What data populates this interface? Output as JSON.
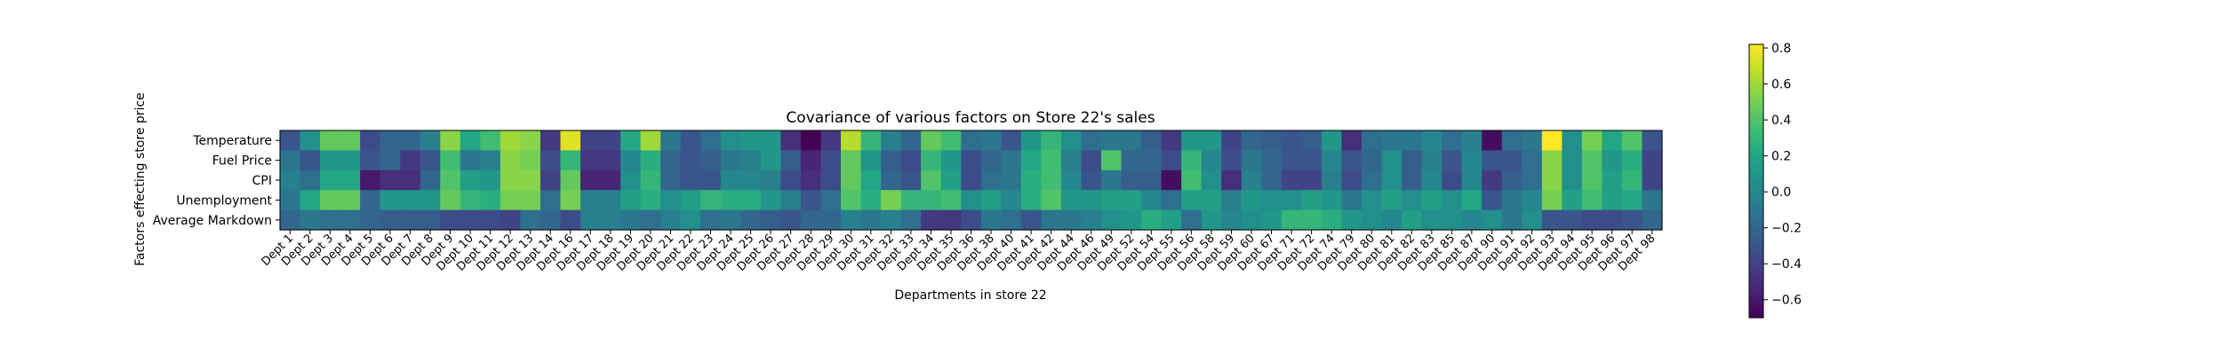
{
  "chart_data": {
    "type": "heatmap",
    "title": "Covariance of various factors on Store 22's sales",
    "xlabel": "Departments in store 22",
    "ylabel": "Factors effecting store price",
    "colormap": "viridis",
    "vmin": -0.7,
    "vmax": 0.82,
    "rows": [
      "Temperature",
      "Fuel Price",
      "CPI",
      "Unemployment",
      "Average Markdown"
    ],
    "columns": [
      "Dept 1",
      "Dept 2",
      "Dept 3",
      "Dept 4",
      "Dept 5",
      "Dept 6",
      "Dept 7",
      "Dept 8",
      "Dept 9",
      "Dept 10",
      "Dept 11",
      "Dept 12",
      "Dept 13",
      "Dept 14",
      "Dept 16",
      "Dept 17",
      "Dept 18",
      "Dept 19",
      "Dept 20",
      "Dept 21",
      "Dept 22",
      "Dept 23",
      "Dept 24",
      "Dept 25",
      "Dept 26",
      "Dept 27",
      "Dept 28",
      "Dept 29",
      "Dept 30",
      "Dept 31",
      "Dept 32",
      "Dept 33",
      "Dept 34",
      "Dept 35",
      "Dept 36",
      "Dept 38",
      "Dept 40",
      "Dept 41",
      "Dept 42",
      "Dept 44",
      "Dept 46",
      "Dept 49",
      "Dept 52",
      "Dept 54",
      "Dept 55",
      "Dept 56",
      "Dept 58",
      "Dept 59",
      "Dept 60",
      "Dept 67",
      "Dept 71",
      "Dept 72",
      "Dept 74",
      "Dept 79",
      "Dept 80",
      "Dept 81",
      "Dept 82",
      "Dept 83",
      "Dept 85",
      "Dept 87",
      "Dept 90",
      "Dept 91",
      "Dept 92",
      "Dept 93",
      "Dept 94",
      "Dept 95",
      "Dept 96",
      "Dept 97",
      "Dept 98"
    ],
    "values": [
      [
        -0.3,
        0.05,
        0.45,
        0.45,
        -0.35,
        -0.2,
        -0.2,
        -0.05,
        0.55,
        0.2,
        0.35,
        0.6,
        0.55,
        -0.45,
        0.75,
        -0.4,
        -0.4,
        0.2,
        0.6,
        -0.1,
        -0.3,
        -0.15,
        0.05,
        0.1,
        0.1,
        -0.5,
        -0.7,
        -0.45,
        0.65,
        0.3,
        -0.05,
        -0.2,
        0.45,
        0.35,
        -0.15,
        -0.1,
        -0.3,
        0.1,
        0.3,
        0.05,
        -0.15,
        -0.1,
        -0.1,
        -0.25,
        -0.45,
        0.1,
        0.1,
        -0.4,
        -0.2,
        -0.25,
        -0.3,
        -0.25,
        0.1,
        -0.5,
        -0.15,
        -0.1,
        -0.1,
        0.0,
        -0.15,
        -0.05,
        -0.65,
        -0.15,
        -0.1,
        0.82,
        0.05,
        0.5,
        0.2,
        0.4,
        -0.3
      ],
      [
        -0.1,
        -0.3,
        0.1,
        0.1,
        -0.3,
        -0.2,
        -0.45,
        -0.3,
        0.35,
        -0.1,
        -0.05,
        0.55,
        0.5,
        -0.35,
        0.3,
        -0.45,
        -0.45,
        0.0,
        0.25,
        -0.2,
        -0.3,
        -0.25,
        -0.1,
        -0.05,
        0.1,
        -0.25,
        -0.55,
        -0.35,
        0.45,
        0.1,
        -0.25,
        -0.35,
        0.3,
        0.1,
        -0.35,
        -0.2,
        -0.1,
        0.2,
        0.35,
        -0.05,
        -0.35,
        0.4,
        -0.2,
        -0.2,
        -0.35,
        0.3,
        0.0,
        -0.35,
        -0.1,
        -0.2,
        -0.3,
        -0.3,
        0.0,
        -0.3,
        -0.2,
        0.05,
        -0.25,
        -0.05,
        -0.3,
        0.0,
        -0.3,
        -0.3,
        -0.15,
        0.55,
        0.05,
        0.4,
        0.1,
        0.25,
        -0.4
      ],
      [
        -0.05,
        -0.15,
        0.2,
        0.2,
        -0.6,
        -0.5,
        -0.5,
        -0.2,
        0.4,
        0.15,
        0.1,
        0.55,
        0.55,
        -0.4,
        0.45,
        -0.55,
        -0.55,
        0.05,
        0.3,
        -0.2,
        -0.3,
        -0.3,
        0.0,
        0.0,
        -0.05,
        -0.35,
        -0.5,
        -0.35,
        0.45,
        0.2,
        -0.2,
        -0.3,
        0.4,
        0.15,
        -0.35,
        -0.15,
        -0.1,
        0.25,
        0.35,
        0.0,
        -0.3,
        -0.1,
        -0.25,
        -0.25,
        -0.65,
        0.35,
        0.05,
        -0.5,
        -0.05,
        -0.2,
        -0.4,
        -0.4,
        -0.05,
        -0.35,
        -0.15,
        0.05,
        -0.25,
        0.0,
        -0.35,
        0.0,
        -0.45,
        -0.25,
        -0.15,
        0.55,
        0.05,
        0.4,
        0.15,
        0.3,
        -0.4
      ],
      [
        -0.1,
        0.2,
        0.45,
        0.45,
        -0.2,
        0.1,
        0.1,
        0.1,
        0.45,
        0.3,
        0.25,
        0.5,
        0.5,
        -0.15,
        0.5,
        -0.05,
        -0.05,
        0.15,
        0.25,
        0.05,
        0.15,
        0.3,
        0.25,
        0.25,
        0.1,
        -0.05,
        -0.3,
        -0.15,
        0.4,
        0.25,
        0.5,
        0.3,
        0.3,
        0.35,
        0.05,
        0.15,
        0.0,
        0.25,
        0.4,
        0.1,
        0.1,
        0.15,
        0.15,
        0.0,
        -0.15,
        0.15,
        0.15,
        -0.05,
        0.1,
        0.05,
        0.05,
        0.15,
        0.1,
        -0.1,
        0.05,
        0.15,
        0.05,
        0.15,
        0.05,
        0.2,
        -0.3,
        -0.1,
        0.0,
        0.5,
        0.15,
        0.35,
        0.15,
        0.2,
        -0.1
      ],
      [
        -0.2,
        -0.1,
        -0.15,
        -0.15,
        -0.2,
        -0.25,
        -0.25,
        -0.25,
        -0.35,
        -0.35,
        -0.35,
        -0.4,
        -0.15,
        -0.2,
        -0.35,
        -0.05,
        -0.05,
        -0.1,
        -0.15,
        -0.05,
        0.05,
        -0.15,
        -0.1,
        -0.2,
        -0.25,
        -0.3,
        -0.2,
        -0.2,
        -0.05,
        -0.1,
        -0.05,
        -0.15,
        -0.45,
        -0.45,
        -0.35,
        -0.1,
        -0.15,
        -0.3,
        -0.1,
        -0.1,
        -0.05,
        0.05,
        0.1,
        0.25,
        0.15,
        -0.15,
        0.1,
        0.0,
        0.05,
        0.1,
        0.3,
        0.3,
        0.25,
        0.1,
        0.05,
        0.0,
        0.15,
        0.05,
        0.05,
        0.0,
        0.05,
        -0.1,
        0.05,
        -0.3,
        -0.3,
        -0.35,
        -0.35,
        -0.3,
        -0.2
      ]
    ],
    "colorbar_ticks": [
      0.8,
      0.6,
      0.4,
      0.2,
      0.0,
      -0.2,
      -0.4,
      -0.6
    ],
    "colorbar_labels": [
      "0.8",
      "0.6",
      "0.4",
      "0.2",
      "0.0",
      "−0.2",
      "−0.4",
      "−0.6"
    ]
  }
}
